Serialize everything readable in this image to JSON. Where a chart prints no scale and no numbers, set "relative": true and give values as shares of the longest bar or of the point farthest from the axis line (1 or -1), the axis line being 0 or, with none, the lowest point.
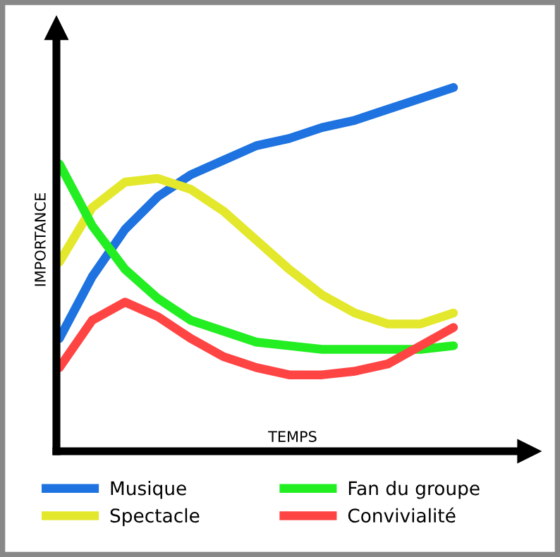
{
  "chart_data": {
    "type": "line",
    "relative": true,
    "xlabel": "TEMPS",
    "ylabel": "IMPORTANCE",
    "legend": "bottom",
    "marker": "none",
    "line_style": "solid",
    "categories": [
      null,
      null,
      null,
      null,
      null,
      null,
      null,
      null,
      null,
      null,
      null,
      null,
      null
    ],
    "series": [
      {
        "name": "Musique",
        "color": "#1e73e0",
        "values": [
          0.31,
          0.48,
          0.61,
          0.7,
          0.76,
          0.8,
          0.84,
          0.86,
          0.89,
          0.91,
          0.94,
          0.97,
          1.0
        ]
      },
      {
        "name": "Spectacle",
        "color": "#e4e82c",
        "values": [
          0.52,
          0.67,
          0.74,
          0.75,
          0.72,
          0.66,
          0.58,
          0.5,
          0.43,
          0.38,
          0.35,
          0.35,
          0.38
        ]
      },
      {
        "name": "Fan du groupe",
        "color": "#22ee22",
        "values": [
          0.79,
          0.62,
          0.5,
          0.42,
          0.36,
          0.33,
          0.3,
          0.29,
          0.28,
          0.28,
          0.28,
          0.28,
          0.29
        ]
      },
      {
        "name": "Convivialité",
        "color": "#ff4444",
        "values": [
          0.23,
          0.36,
          0.41,
          0.37,
          0.31,
          0.26,
          0.23,
          0.21,
          0.21,
          0.22,
          0.24,
          0.29,
          0.34
        ]
      }
    ]
  }
}
